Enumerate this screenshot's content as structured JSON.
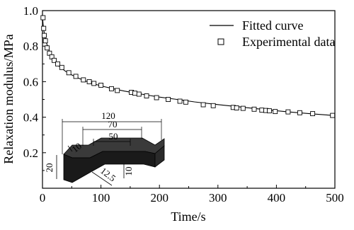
{
  "chart_data": {
    "type": "scatter",
    "title": "",
    "xlabel": "Time/s",
    "ylabel": "Relaxation modulus/MPa",
    "xlim": [
      0,
      500
    ],
    "ylim": [
      0.0,
      1.0
    ],
    "x_ticks": [
      0,
      100,
      200,
      300,
      400,
      500
    ],
    "x_tick_labels": [
      "0",
      "100",
      "200",
      "300",
      "400",
      "500"
    ],
    "y_ticks": [
      0.2,
      0.4,
      0.6,
      0.8,
      1.0
    ],
    "y_tick_labels": [
      "0.2",
      "0.4",
      "0.6",
      "0.8",
      "1.0"
    ],
    "grid": false,
    "legend_position": "top-right",
    "series": [
      {
        "name": "Fitted curve",
        "kind": "line",
        "color": "#000000",
        "x": [
          0.5,
          1,
          2,
          3,
          5,
          7,
          10,
          13,
          16,
          20,
          25,
          30,
          40,
          50,
          60,
          70,
          80,
          90,
          100,
          120,
          140,
          160,
          180,
          200,
          230,
          260,
          300,
          340,
          380,
          420,
          460,
          500
        ],
        "y": [
          0.95,
          0.925,
          0.895,
          0.875,
          0.842,
          0.816,
          0.786,
          0.762,
          0.742,
          0.72,
          0.699,
          0.682,
          0.657,
          0.638,
          0.622,
          0.608,
          0.596,
          0.586,
          0.576,
          0.561,
          0.547,
          0.535,
          0.524,
          0.513,
          0.5,
          0.486,
          0.471,
          0.457,
          0.443,
          0.43,
          0.419,
          0.409
        ]
      },
      {
        "name": "Experimental data",
        "kind": "scatter",
        "marker": "open-square",
        "color": "#000000",
        "x": [
          1,
          2,
          3,
          5,
          8,
          12,
          16,
          20,
          26,
          33,
          45,
          57,
          70,
          80,
          88,
          100,
          118,
          128,
          152,
          158,
          165,
          178,
          195,
          215,
          235,
          245,
          275,
          292,
          326,
          332,
          343,
          362,
          375,
          382,
          388,
          398,
          420,
          440,
          462,
          496
        ],
        "y": [
          0.96,
          0.9,
          0.86,
          0.83,
          0.79,
          0.76,
          0.74,
          0.72,
          0.7,
          0.68,
          0.65,
          0.63,
          0.61,
          0.6,
          0.59,
          0.58,
          0.56,
          0.55,
          0.54,
          0.535,
          0.53,
          0.52,
          0.51,
          0.5,
          0.49,
          0.485,
          0.47,
          0.465,
          0.455,
          0.452,
          0.45,
          0.445,
          0.44,
          0.438,
          0.436,
          0.432,
          0.43,
          0.425,
          0.42,
          0.41
        ]
      }
    ]
  },
  "specimen_inset": {
    "dimensions": [
      "120",
      "70",
      "50",
      "10",
      "20",
      "12.5",
      "10"
    ]
  }
}
